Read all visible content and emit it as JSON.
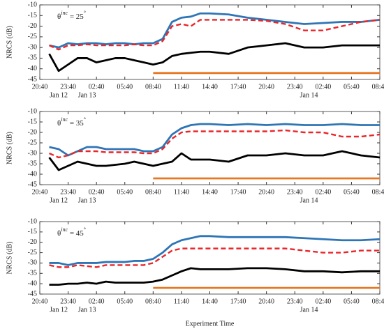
{
  "chart_data": [
    {
      "type": "line",
      "annotation": [
        "θ",
        "inc",
        " = 25",
        "°"
      ],
      "ylabel": "NRCS (dB)",
      "xlim": [
        0,
        36
      ],
      "ylim": [
        -45,
        -10
      ],
      "xticks": [
        {
          "value": 0,
          "label": "20:40"
        },
        {
          "value": 3,
          "label": "23:40"
        },
        {
          "value": 6,
          "label": "02:40"
        },
        {
          "value": 9,
          "label": "05:40"
        },
        {
          "value": 12,
          "label": "08:40"
        },
        {
          "value": 15,
          "label": "11:40"
        },
        {
          "value": 18,
          "label": "14:40"
        },
        {
          "value": 21,
          "label": "17:40"
        },
        {
          "value": 24,
          "label": "20:40"
        },
        {
          "value": 27,
          "label": "23:40"
        },
        {
          "value": 30,
          "label": "02:40"
        },
        {
          "value": 33,
          "label": "05:40"
        },
        {
          "value": 36,
          "label": "08:40"
        }
      ],
      "date_labels": [
        {
          "value": 2,
          "label": "Jan 12"
        },
        {
          "value": 5,
          "label": "Jan 13"
        },
        {
          "value": 28.5,
          "label": "Jan 14"
        }
      ],
      "yticks": [
        -45,
        -40,
        -35,
        -30,
        -25,
        -20,
        -15,
        -10
      ],
      "x": [
        1,
        2,
        3,
        4,
        5,
        6,
        7,
        8,
        9,
        10,
        11,
        12,
        13,
        14,
        15,
        16,
        17,
        18,
        20,
        22,
        24,
        26,
        28,
        30,
        32,
        34,
        36
      ],
      "series": [
        {
          "color": "#2e75b6",
          "values": [
            -29,
            -30,
            -28,
            -28.5,
            -28,
            -28,
            -28.5,
            -28,
            -28,
            -28.5,
            -28,
            -28,
            -26,
            -18,
            -16,
            -15.5,
            -14,
            -14,
            -14.5,
            -16,
            -17,
            -18,
            -19,
            -18.5,
            -18,
            -18,
            -17
          ]
        },
        {
          "color": "#e8262b",
          "dashed": true,
          "values": [
            -29,
            -31,
            -29,
            -29,
            -28.5,
            -29,
            -29,
            -29,
            -29,
            -28.5,
            -29,
            -29,
            -27,
            -20,
            -19,
            -20,
            -17,
            -17,
            -17,
            -17,
            -17.5,
            -19,
            -22,
            -22,
            -20,
            -18,
            -17
          ]
        },
        {
          "color": "#000000",
          "values": [
            -33,
            -41,
            -38,
            -35,
            -35,
            -37,
            -36,
            -35,
            -35,
            -36,
            -37,
            -38,
            -37,
            -34,
            -33,
            -32.5,
            -32,
            -32,
            -33,
            -30,
            -29,
            -28,
            -30,
            -30,
            -29,
            -29,
            -29
          ]
        },
        {
          "color": "#e87722",
          "x": [
            12,
            36
          ],
          "values": [
            -42,
            -42
          ]
        }
      ]
    },
    {
      "type": "line",
      "annotation": [
        "θ",
        "inc",
        " = 35",
        "°"
      ],
      "ylabel": "NRCS (dB)",
      "xlim": [
        0,
        36
      ],
      "ylim": [
        -45,
        -10
      ],
      "xticks": [
        {
          "value": 0,
          "label": "20:40"
        },
        {
          "value": 3,
          "label": "23:40"
        },
        {
          "value": 6,
          "label": "02:40"
        },
        {
          "value": 9,
          "label": "05:40"
        },
        {
          "value": 12,
          "label": "08:40"
        },
        {
          "value": 15,
          "label": "11:40"
        },
        {
          "value": 18,
          "label": "14:40"
        },
        {
          "value": 21,
          "label": "17:40"
        },
        {
          "value": 24,
          "label": "20:40"
        },
        {
          "value": 27,
          "label": "23:40"
        },
        {
          "value": 30,
          "label": "02:40"
        },
        {
          "value": 33,
          "label": "05:40"
        },
        {
          "value": 36,
          "label": "08:40"
        }
      ],
      "date_labels": [
        {
          "value": 2,
          "label": "Jan 12"
        },
        {
          "value": 5,
          "label": "Jan 13"
        },
        {
          "value": 28.5,
          "label": "Jan 14"
        }
      ],
      "yticks": [
        -45,
        -40,
        -35,
        -30,
        -25,
        -20,
        -15,
        -10
      ],
      "x": [
        1,
        2,
        3,
        4,
        5,
        6,
        7,
        8,
        9,
        10,
        11,
        12,
        13,
        14,
        15,
        16,
        17,
        18,
        20,
        22,
        24,
        26,
        28,
        30,
        32,
        34,
        36
      ],
      "series": [
        {
          "color": "#2e75b6",
          "values": [
            -27,
            -28,
            -31,
            -29,
            -27,
            -27,
            -28,
            -28,
            -28,
            -28,
            -29,
            -29,
            -27,
            -21,
            -18,
            -16.5,
            -16,
            -16,
            -16.5,
            -16,
            -16.5,
            -16,
            -16.5,
            -16.5,
            -16,
            -16.5,
            -16.5
          ]
        },
        {
          "color": "#e8262b",
          "dashed": true,
          "values": [
            -30,
            -32,
            -31,
            -29,
            -29,
            -29,
            -29.5,
            -29.5,
            -29.5,
            -29.5,
            -30,
            -30,
            -28,
            -23,
            -20,
            -19.5,
            -19.5,
            -19.5,
            -19.5,
            -19.5,
            -19.5,
            -19,
            -20,
            -20,
            -22,
            -22,
            -21
          ]
        },
        {
          "color": "#000000",
          "values": [
            -32,
            -38,
            -36,
            -34,
            -35,
            -36,
            -36,
            -35.5,
            -35,
            -34,
            -35,
            -36,
            -35,
            -34,
            -30,
            -33,
            -33,
            -33,
            -34,
            -31,
            -31,
            -30,
            -31,
            -31,
            -29,
            -31,
            -32
          ]
        },
        {
          "color": "#e87722",
          "x": [
            12,
            36
          ],
          "values": [
            -42,
            -42
          ]
        }
      ]
    },
    {
      "type": "line",
      "annotation": [
        "θ",
        "inc",
        " = 45",
        "°"
      ],
      "ylabel": "NRCS (dB)",
      "xlabel": "Experiment Time",
      "xlim": [
        0,
        36
      ],
      "ylim": [
        -45,
        -10
      ],
      "xticks": [
        {
          "value": 0,
          "label": "20:40"
        },
        {
          "value": 3,
          "label": "23:40"
        },
        {
          "value": 6,
          "label": "02:40"
        },
        {
          "value": 9,
          "label": "05:40"
        },
        {
          "value": 12,
          "label": "08:40"
        },
        {
          "value": 15,
          "label": "11:40"
        },
        {
          "value": 18,
          "label": "14:40"
        },
        {
          "value": 21,
          "label": "17:40"
        },
        {
          "value": 24,
          "label": "20:40"
        },
        {
          "value": 27,
          "label": "23:40"
        },
        {
          "value": 30,
          "label": "02:40"
        },
        {
          "value": 33,
          "label": "05:40"
        },
        {
          "value": 36,
          "label": "08:40"
        }
      ],
      "date_labels": [
        {
          "value": 2,
          "label": "Jan 12"
        },
        {
          "value": 5,
          "label": "Jan 13"
        },
        {
          "value": 28.5,
          "label": "Jan 14"
        }
      ],
      "yticks": [
        -45,
        -40,
        -35,
        -30,
        -25,
        -20,
        -15,
        -10
      ],
      "x": [
        1,
        2,
        3,
        4,
        5,
        6,
        7,
        8,
        9,
        10,
        11,
        12,
        13,
        14,
        15,
        16,
        17,
        18,
        20,
        22,
        24,
        26,
        28,
        30,
        32,
        34,
        36
      ],
      "series": [
        {
          "color": "#2e75b6",
          "values": [
            -30,
            -30,
            -31,
            -30,
            -30,
            -30,
            -29.5,
            -29.5,
            -29.5,
            -29,
            -29,
            -28,
            -25,
            -21,
            -19,
            -18,
            -17,
            -17,
            -17.5,
            -17.5,
            -17.5,
            -17.5,
            -18,
            -18.5,
            -19,
            -19,
            -18.5
          ]
        },
        {
          "color": "#e8262b",
          "dashed": true,
          "values": [
            -31,
            -32,
            -32,
            -31,
            -31.5,
            -32,
            -31,
            -31,
            -31,
            -31,
            -31,
            -30,
            -27,
            -24,
            -23,
            -23,
            -23,
            -23,
            -23,
            -23,
            -23,
            -23,
            -24,
            -25,
            -25,
            -24,
            -24
          ]
        },
        {
          "color": "#000000",
          "values": [
            -40.5,
            -40.5,
            -40,
            -40,
            -39.5,
            -40,
            -39,
            -39.5,
            -39.5,
            -39.5,
            -39.5,
            -39,
            -38,
            -36,
            -34,
            -32.5,
            -33,
            -33,
            -33,
            -32.5,
            -32.5,
            -33,
            -34,
            -34,
            -34.5,
            -34,
            -34
          ]
        },
        {
          "color": "#e87722",
          "x": [
            12,
            36
          ],
          "values": [
            -42,
            -42
          ]
        }
      ]
    }
  ]
}
